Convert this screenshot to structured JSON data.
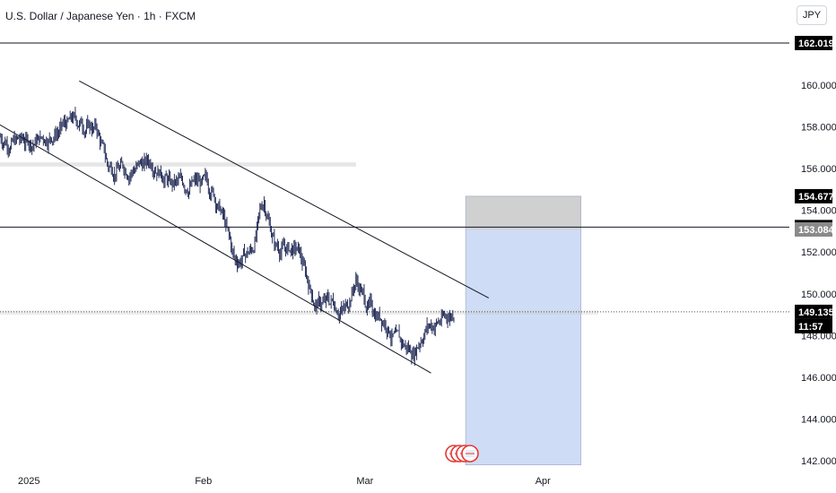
{
  "header": {
    "symbol_title": "U.S. Dollar / Japanese Yen · 1h · FXCM",
    "currency_button": "JPY"
  },
  "colors": {
    "candle": "#131c4a",
    "channel_line": "#131722",
    "zone_gray": "#c8c8c8",
    "zone_blue": "#cfdcf5",
    "price_label_bg": "#000000",
    "price_label_gray": "#8a8a8a",
    "event_red": "#e53935"
  },
  "chart_data": {
    "type": "candlestick",
    "ylim": [
      141.8,
      163.0
    ],
    "y_ticks": [
      142,
      144,
      146,
      148,
      150,
      152,
      154,
      156,
      158,
      160
    ],
    "y_tick_labels": [
      "142.000",
      "144.000",
      "146.000",
      "148.000",
      "150.000",
      "152.000",
      "154.000",
      "156.000",
      "158.000",
      "160.000"
    ],
    "x_ticks": [
      {
        "label": "2025",
        "date": "2025-01-01"
      },
      {
        "label": "Feb",
        "date": "2025-02-01"
      },
      {
        "label": "Mar",
        "date": "2025-03-01"
      },
      {
        "label": "Apr",
        "date": "2025-04-01"
      }
    ],
    "price_path": [
      [
        "2024-12-27",
        157.7
      ],
      [
        "2024-12-30",
        157.3
      ],
      [
        "2025-01-03",
        157.3
      ],
      [
        "2025-01-06",
        157.6
      ],
      [
        "2025-01-10",
        158.3
      ],
      [
        "2025-01-14",
        157.9
      ],
      [
        "2025-01-16",
        156.1
      ],
      [
        "2025-01-20",
        156.0
      ],
      [
        "2025-01-24",
        156.4
      ],
      [
        "2025-01-27",
        155.2
      ],
      [
        "2025-01-31",
        155.3
      ],
      [
        "2025-02-03",
        155.1
      ],
      [
        "2025-02-05",
        153.6
      ],
      [
        "2025-02-07",
        151.5
      ],
      [
        "2025-02-10",
        152.1
      ],
      [
        "2025-02-12",
        154.5
      ],
      [
        "2025-02-14",
        152.3
      ],
      [
        "2025-02-18",
        152.0
      ],
      [
        "2025-02-21",
        149.5
      ],
      [
        "2025-02-24",
        149.6
      ],
      [
        "2025-02-26",
        149.2
      ],
      [
        "2025-02-28",
        150.7
      ],
      [
        "2025-03-02",
        149.4
      ],
      [
        "2025-03-05",
        148.8
      ],
      [
        "2025-03-07",
        147.7
      ],
      [
        "2025-03-10",
        147.2
      ],
      [
        "2025-03-12",
        148.4
      ],
      [
        "2025-03-14",
        148.6
      ],
      [
        "2025-03-17",
        149.135
      ]
    ],
    "channel_lines": [
      {
        "name": "upper",
        "from": [
          "2025-01-11",
          160.2
        ],
        "to": [
          "2025-03-23",
          149.8
        ]
      },
      {
        "name": "lower",
        "from": [
          "2024-12-27",
          158.3
        ],
        "to": [
          "2025-03-13",
          146.2
        ]
      }
    ],
    "horizontal_lines": [
      {
        "name": "resistance",
        "value": 162.019,
        "style": "solid"
      },
      {
        "name": "mid",
        "value": 153.198,
        "style": "solid"
      },
      {
        "name": "current",
        "value": 149.135,
        "style": "dotted"
      }
    ],
    "zones": [
      {
        "name": "old-resistance",
        "from": "2024-12-27",
        "to": "2025-02-28",
        "y_low": 156.1,
        "y_high": 156.3
      },
      {
        "name": "stop-zone",
        "from": "2025-03-19",
        "to": "2025-04-08",
        "y_low": 153.084,
        "y_high": 154.677
      },
      {
        "name": "target-zone",
        "from": "2025-03-19",
        "to": "2025-04-08",
        "y_low": 141.8,
        "y_high": 153.084
      },
      {
        "name": "entry-band",
        "from": "2024-12-27",
        "to": "2025-04-11",
        "y_low": 149.0,
        "y_high": 149.2
      }
    ],
    "price_labels": [
      {
        "text": "162.019",
        "value": 162.019,
        "style": "dark"
      },
      {
        "text": "154.677",
        "value": 154.677,
        "style": "dark"
      },
      {
        "text": "153.198",
        "value": 153.198,
        "style": "dark"
      },
      {
        "text": "153.084",
        "value": 153.084,
        "style": "gray"
      },
      {
        "text": "149.135",
        "value": 149.135,
        "style": "dark"
      }
    ],
    "countdown": "11:57",
    "event_markers": [
      "2025-03-19",
      "2025-03-20",
      "2025-03-21",
      "2025-03-22"
    ]
  }
}
